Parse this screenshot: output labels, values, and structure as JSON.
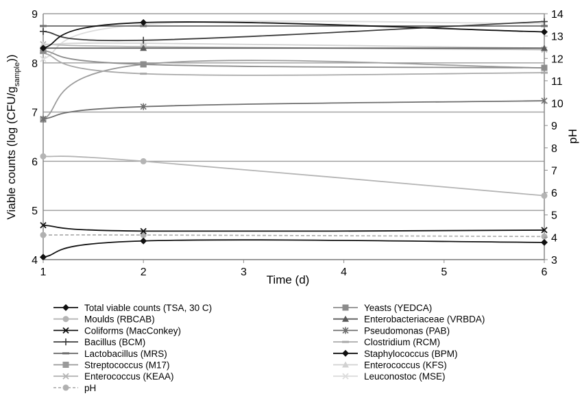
{
  "chart_data": {
    "type": "line",
    "x": [
      1,
      2,
      6
    ],
    "xlabel": "Time (d)",
    "ylabel": "Viable counts (log (CFU/g",
    "ylabel_sub": "sample",
    "ylabel_end": "))",
    "y2label": "pH",
    "xlim": [
      1,
      6
    ],
    "ylim": [
      4,
      9
    ],
    "y2lim": [
      3,
      14
    ],
    "xticks": [
      "1",
      "2",
      "3",
      "4",
      "5",
      "6"
    ],
    "yticks": [
      "4",
      "5",
      "6",
      "7",
      "8",
      "9"
    ],
    "y2ticks": [
      "3",
      "4",
      "5",
      "6",
      "7",
      "8",
      "9",
      "10",
      "11",
      "12",
      "13",
      "14"
    ],
    "grid": "horizontal",
    "legend_position": "bottom",
    "series": [
      {
        "name": "Total viable counts (TSA,  30 C)",
        "values": [
          8.3,
          8.82,
          8.63
        ],
        "color": "#111111",
        "marker": "diamond",
        "dash": false,
        "axis": "left"
      },
      {
        "name": "Yeasts (YEDCA)",
        "values": [
          8.25,
          7.97,
          7.9
        ],
        "color": "#8c8c8c",
        "marker": "square",
        "dash": false,
        "axis": "left"
      },
      {
        "name": "Moulds (RBCAB)",
        "values": [
          6.1,
          6.0,
          5.3
        ],
        "color": "#b4b4b4",
        "marker": "circle",
        "dash": false,
        "axis": "left"
      },
      {
        "name": "Enterobacteriaceae (VRBDA)",
        "values": [
          8.3,
          8.3,
          8.3
        ],
        "color": "#5a5a5a",
        "marker": "triangle",
        "dash": false,
        "axis": "left"
      },
      {
        "name": "Coliforms (MacConkey)",
        "values": [
          4.7,
          4.58,
          4.6
        ],
        "color": "#111111",
        "marker": "x",
        "dash": false,
        "axis": "left"
      },
      {
        "name": "Pseudomonas (PAB)",
        "values": [
          6.86,
          7.11,
          7.23
        ],
        "color": "#6e6e6e",
        "marker": "star",
        "dash": false,
        "axis": "left"
      },
      {
        "name": "Bacillus (BCM)",
        "values": [
          8.64,
          8.46,
          8.84
        ],
        "color": "#3a3a3a",
        "marker": "plus",
        "dash": false,
        "axis": "left"
      },
      {
        "name": "Clostridium (RCM)",
        "values": [
          8.2,
          7.78,
          7.8
        ],
        "color": "#a8a8a8",
        "marker": "dash",
        "dash": false,
        "axis": "left"
      },
      {
        "name": "Lactobacillus (MRS)",
        "values": [
          8.75,
          8.75,
          8.75
        ],
        "color": "#6e6e6e",
        "marker": "dash",
        "dash": false,
        "axis": "left"
      },
      {
        "name": "Staphylococcus (BPM)",
        "values": [
          4.05,
          4.38,
          4.35
        ],
        "color": "#111111",
        "marker": "diamond",
        "dash": false,
        "axis": "left"
      },
      {
        "name": "Streptococcus (M17)",
        "values": [
          6.85,
          7.97,
          7.9
        ],
        "color": "#9a9a9a",
        "marker": "square",
        "dash": false,
        "axis": "left"
      },
      {
        "name": "Enterococcus (KFS)",
        "values": [
          8.37,
          8.4,
          8.3
        ],
        "color": "#d2d2d2",
        "marker": "triangle",
        "dash": false,
        "axis": "left"
      },
      {
        "name": "Enterococcus (KEAA)",
        "values": [
          8.38,
          8.33,
          8.27
        ],
        "color": "#b4b4b4",
        "marker": "x",
        "dash": false,
        "axis": "left"
      },
      {
        "name": "Leuconostoc (MSE)",
        "values": [
          8.08,
          8.78,
          8.8
        ],
        "color": "#dcdcdc",
        "marker": "x",
        "dash": false,
        "axis": "left"
      },
      {
        "name": "pH",
        "values": [
          4.5,
          4.5,
          4.47
        ],
        "color": "#b0b0b0",
        "marker": "circle",
        "dash": true,
        "axis": "left"
      }
    ]
  }
}
